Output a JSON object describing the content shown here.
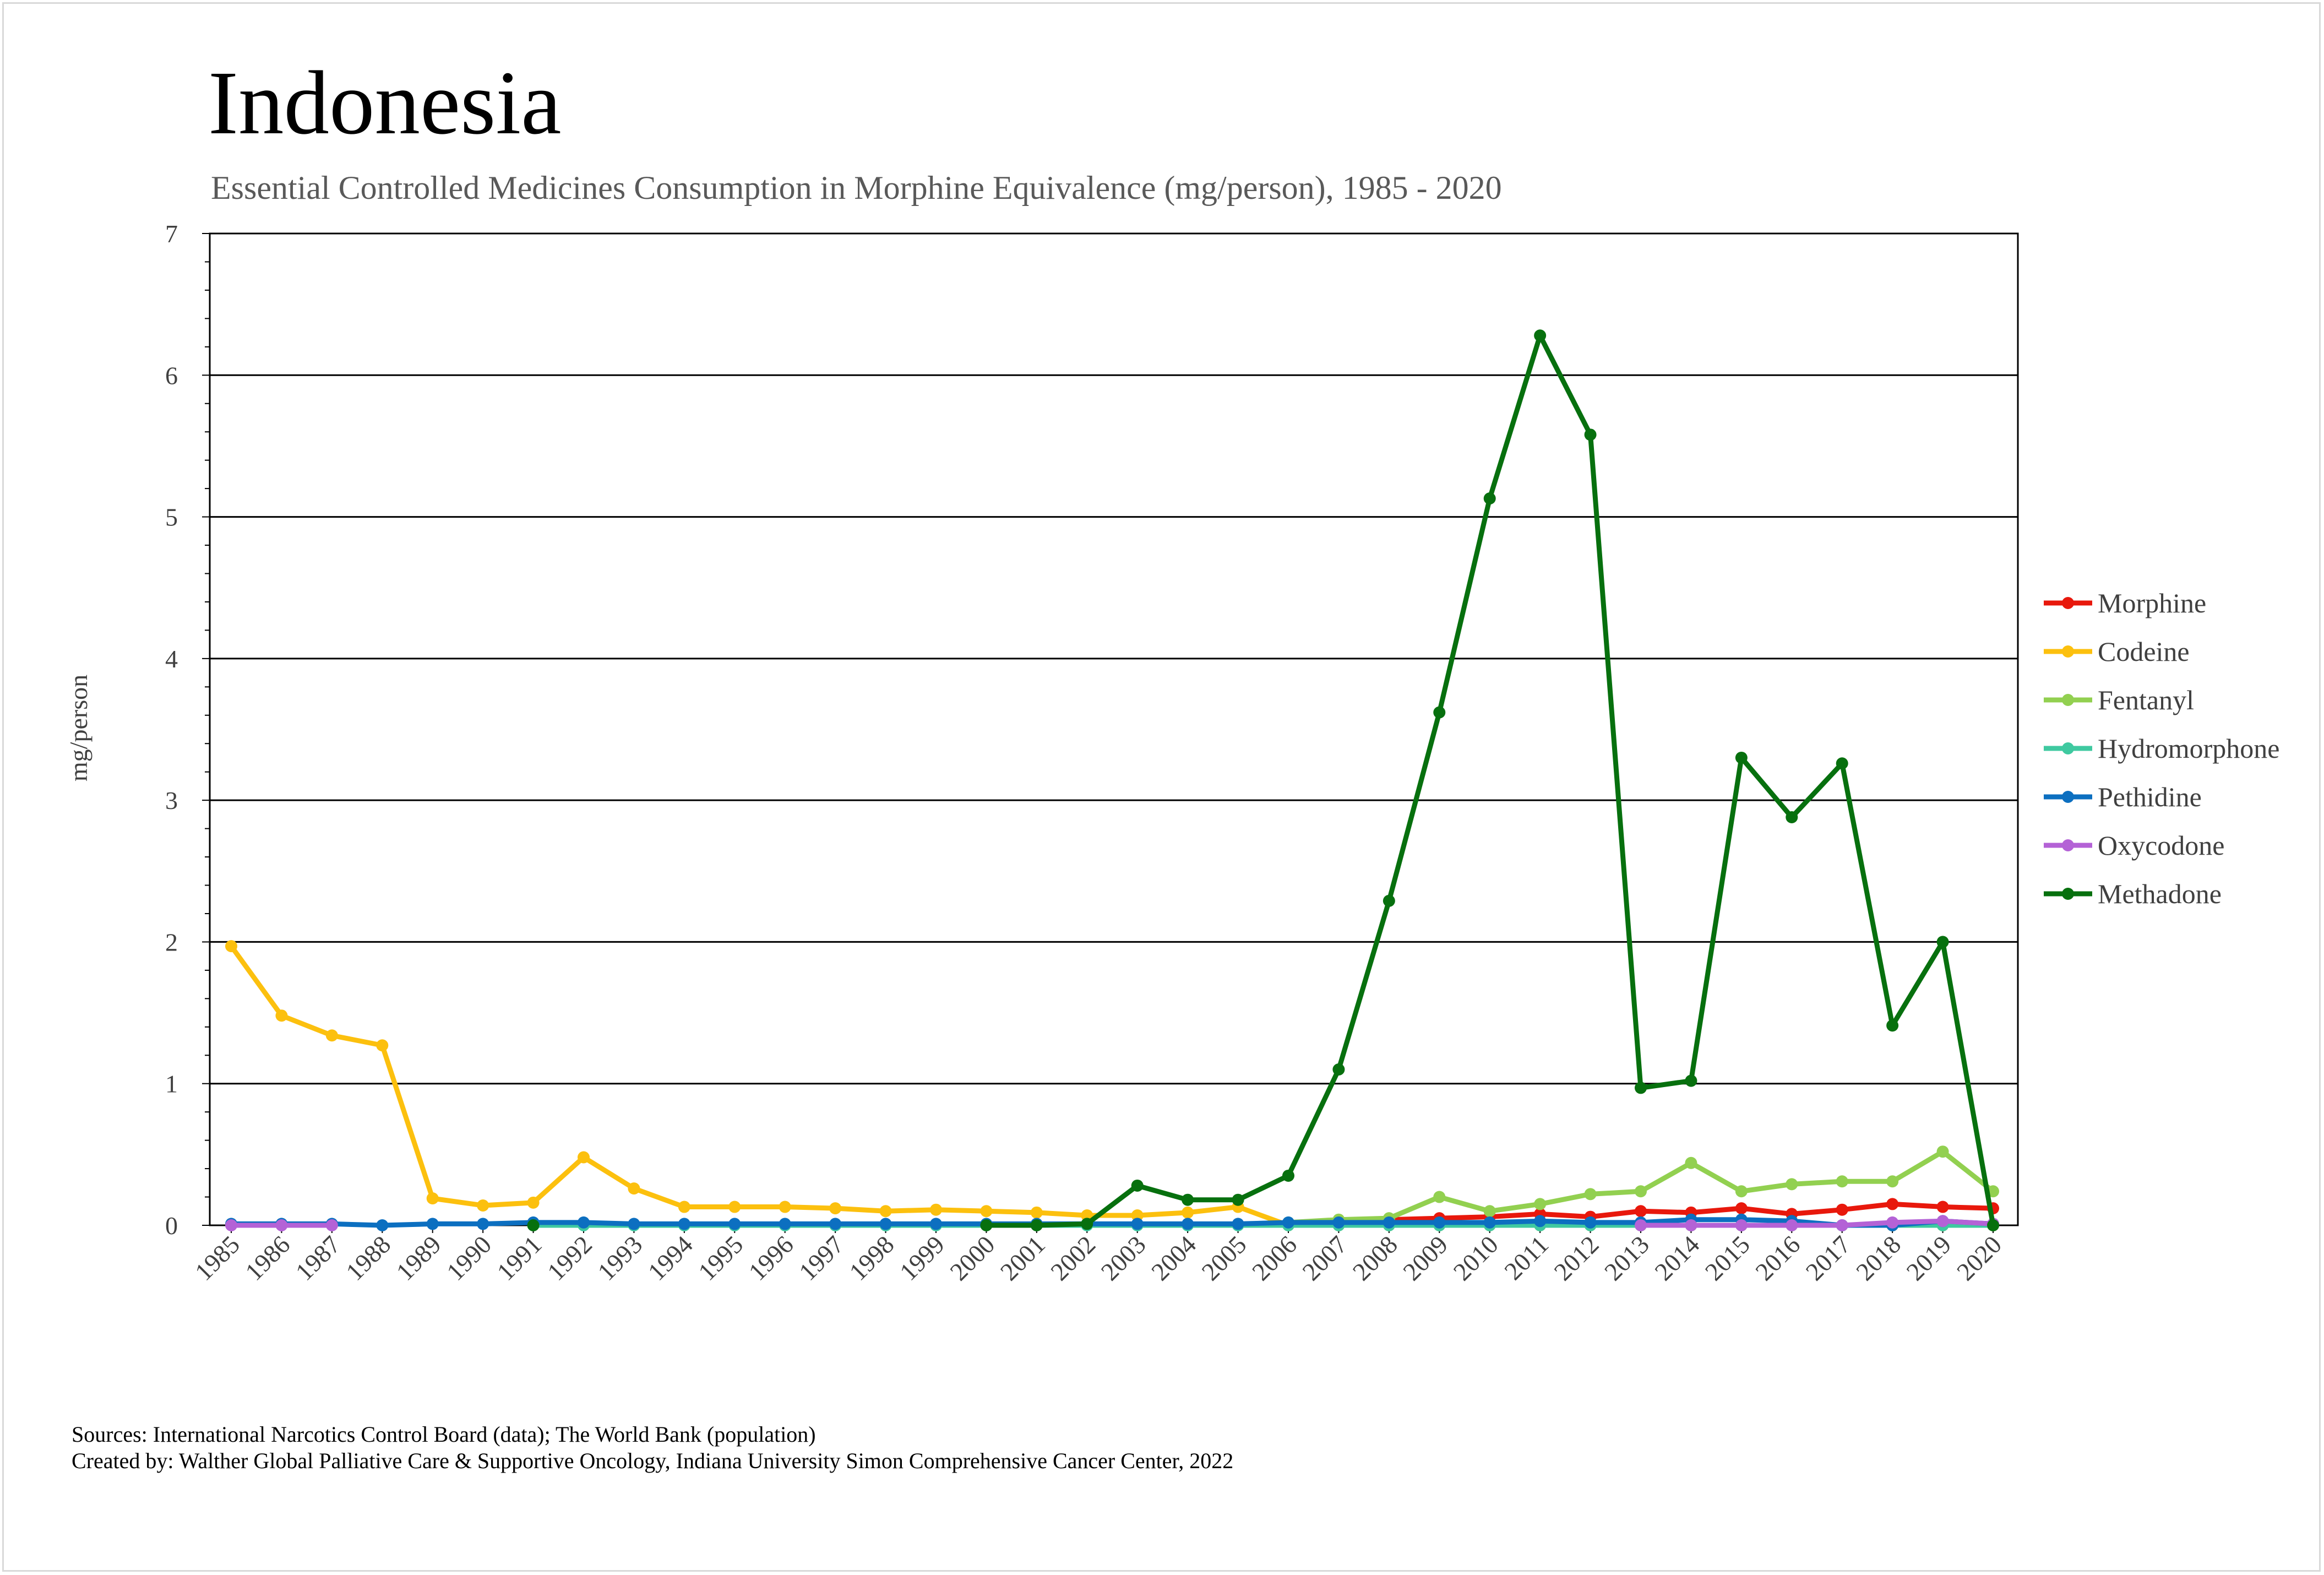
{
  "chart_data": {
    "type": "line",
    "title": "Indonesia",
    "subtitle": "Essential Controlled Medicines Consumption in Morphine Equivalence (mg/person), 1985 - 2020",
    "xlabel": "",
    "ylabel": "mg/person",
    "ylim": [
      0,
      7
    ],
    "yticks": [
      0,
      1,
      2,
      3,
      4,
      5,
      6,
      7
    ],
    "grid": true,
    "legend_position": "right",
    "categories": [
      "1985",
      "1986",
      "1987",
      "1988",
      "1989",
      "1990",
      "1991",
      "1992",
      "1993",
      "1994",
      "1995",
      "1996",
      "1997",
      "1998",
      "1999",
      "2000",
      "2001",
      "2002",
      "2003",
      "2004",
      "2005",
      "2006",
      "2007",
      "2008",
      "2009",
      "2010",
      "2011",
      "2012",
      "2013",
      "2014",
      "2015",
      "2016",
      "2017",
      "2018",
      "2019",
      "2020"
    ],
    "series": [
      {
        "name": "Morphine",
        "color": "#e8180c",
        "values": [
          null,
          null,
          null,
          null,
          null,
          null,
          null,
          null,
          null,
          null,
          null,
          null,
          null,
          null,
          null,
          null,
          null,
          null,
          null,
          null,
          null,
          null,
          0.03,
          0.04,
          0.05,
          0.06,
          0.08,
          0.06,
          0.1,
          0.09,
          0.12,
          0.08,
          0.11,
          0.15,
          0.13,
          0.12
        ]
      },
      {
        "name": "Codeine",
        "color": "#fcc00e",
        "values": [
          1.97,
          1.48,
          1.34,
          1.27,
          0.19,
          0.14,
          0.16,
          0.48,
          0.26,
          0.13,
          0.13,
          0.13,
          0.12,
          0.1,
          0.11,
          0.1,
          0.09,
          0.07,
          0.07,
          0.09,
          0.13,
          0.0,
          0.0,
          0.0,
          0.0,
          0.0,
          0.0,
          0.0,
          0.0,
          0.0,
          0.0,
          0.0,
          0.0,
          0.0,
          0.0,
          0.0
        ]
      },
      {
        "name": "Fentanyl",
        "color": "#92d050",
        "values": [
          null,
          null,
          null,
          null,
          null,
          null,
          null,
          null,
          null,
          null,
          null,
          null,
          null,
          null,
          null,
          null,
          null,
          null,
          null,
          null,
          null,
          0.02,
          0.04,
          0.05,
          0.2,
          0.1,
          0.15,
          0.22,
          0.24,
          0.44,
          0.24,
          0.29,
          0.31,
          0.31,
          0.52,
          0.24
        ]
      },
      {
        "name": "Hydromorphone",
        "color": "#3fc9a0",
        "values": [
          null,
          null,
          null,
          null,
          null,
          null,
          0.0,
          0.0,
          0.0,
          0.0,
          0.0,
          0.0,
          0.0,
          0.0,
          0.0,
          0.0,
          0.0,
          0.0,
          0.0,
          0.0,
          0.0,
          0.0,
          0.0,
          0.0,
          0.0,
          0.0,
          0.0,
          0.0,
          0.0,
          0.0,
          0.0,
          0.0,
          0.0,
          0.0,
          0.0,
          0.0
        ]
      },
      {
        "name": "Pethidine",
        "color": "#0c6fc0",
        "values": [
          0.01,
          0.01,
          0.01,
          0.0,
          0.01,
          0.01,
          0.02,
          0.02,
          0.01,
          0.01,
          0.01,
          0.01,
          0.01,
          0.01,
          0.01,
          0.01,
          0.01,
          0.01,
          0.01,
          0.01,
          0.01,
          0.02,
          0.02,
          0.02,
          0.02,
          0.02,
          0.03,
          0.02,
          0.02,
          0.04,
          0.04,
          0.03,
          0.0,
          0.0,
          0.03,
          0.01
        ]
      },
      {
        "name": "Oxycodone",
        "color": "#b462d6",
        "values": [
          0.0,
          0.0,
          0.0,
          null,
          null,
          null,
          null,
          null,
          null,
          null,
          null,
          null,
          null,
          null,
          null,
          null,
          null,
          null,
          null,
          null,
          null,
          null,
          null,
          null,
          null,
          null,
          null,
          null,
          0.0,
          0.0,
          0.0,
          0.0,
          0.0,
          0.02,
          0.03,
          0.01
        ]
      },
      {
        "name": "Methadone",
        "color": "#07700e",
        "values": [
          null,
          null,
          null,
          null,
          null,
          null,
          0.0,
          null,
          null,
          null,
          null,
          null,
          null,
          null,
          null,
          0.0,
          0.0,
          0.01,
          0.28,
          0.18,
          0.18,
          0.35,
          1.1,
          2.29,
          3.62,
          5.13,
          6.28,
          5.58,
          0.97,
          1.02,
          3.3,
          2.88,
          3.26,
          1.41,
          2.0,
          0.0
        ]
      }
    ]
  },
  "footer": {
    "sources": "Sources: International Narcotics Control Board (data); The World Bank (population)",
    "created_by": "Created by: Walther Global Palliative Care & Supportive Oncology, Indiana University Simon Comprehensive Cancer Center, 2022"
  }
}
